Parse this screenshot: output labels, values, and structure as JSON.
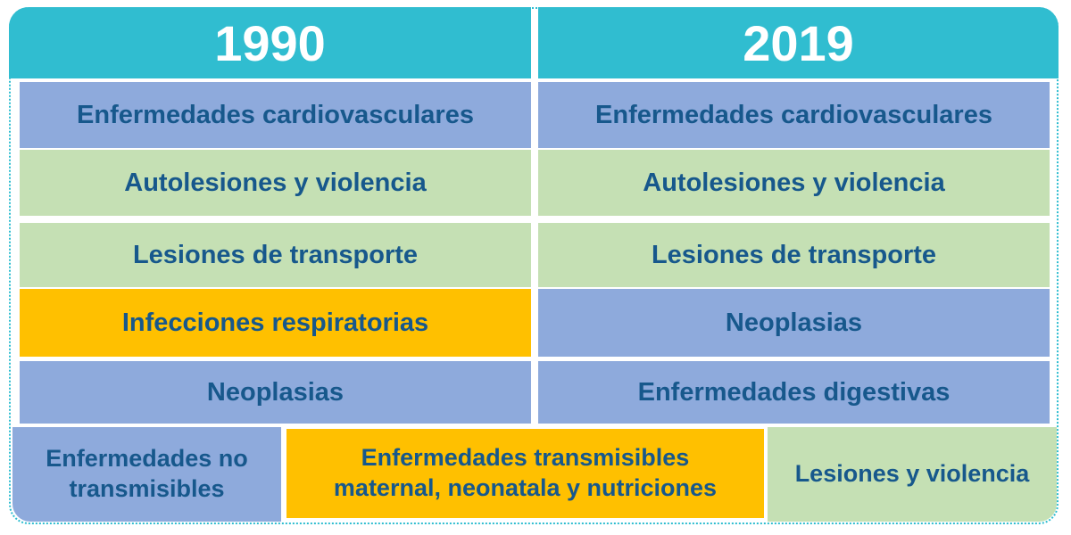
{
  "colors": {
    "header": "#30bdd0",
    "non_communicable": "#8eaadc",
    "injuries": "#c5e0b4",
    "communicable": "#ffc000",
    "text": "#17588c"
  },
  "columns": [
    {
      "year": "1990",
      "rows": [
        {
          "label": "Enfermedades cardiovasculares",
          "category": "blue"
        },
        {
          "label": "Autolesiones y violencia",
          "category": "green"
        },
        {
          "label": "Lesiones de transporte",
          "category": "green"
        },
        {
          "label": "Infecciones respiratorias",
          "category": "yellow"
        },
        {
          "label": "Neoplasias",
          "category": "blue"
        }
      ]
    },
    {
      "year": "2019",
      "rows": [
        {
          "label": "Enfermedades cardiovasculares",
          "category": "blue"
        },
        {
          "label": "Autolesiones y violencia",
          "category": "green"
        },
        {
          "label": "Lesiones de transporte",
          "category": "green"
        },
        {
          "label": "Neoplasias",
          "category": "blue"
        },
        {
          "label": "Enfermedades digestivas",
          "category": "blue"
        }
      ]
    }
  ],
  "legend": [
    {
      "label": "Enfermedades no transmisibles",
      "category": "blue"
    },
    {
      "label": "Enfermedades transmisibles maternal, neonatala y nutriciones",
      "category": "yellow"
    },
    {
      "label": "Lesiones y violencia",
      "category": "green"
    }
  ]
}
